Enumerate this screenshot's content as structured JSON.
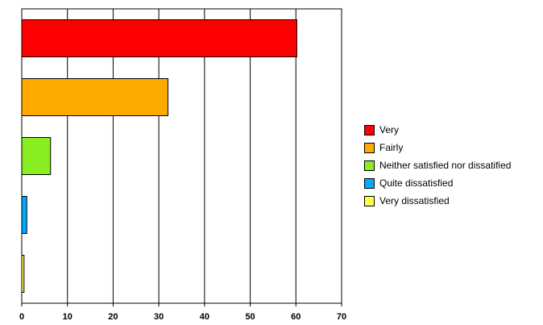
{
  "chart_data": {
    "type": "bar",
    "orientation": "horizontal",
    "title": "",
    "xlabel": "",
    "ylabel": "",
    "xlim": [
      0,
      70
    ],
    "x_ticks": [
      "0",
      "10",
      "20",
      "30",
      "40",
      "50",
      "60",
      "70"
    ],
    "grid": true,
    "legend_position": "right",
    "categories": [
      "Very",
      "Fairly",
      "Neither satisfied nor dissatified",
      "Quite dissatisfied",
      "Very dissatisfied"
    ],
    "values": [
      60.2,
      32,
      6.3,
      1.1,
      0.5
    ],
    "colors": [
      "#ff0000",
      "#ffaa00",
      "#88ee22",
      "#00aaff",
      "#ffff44"
    ]
  }
}
